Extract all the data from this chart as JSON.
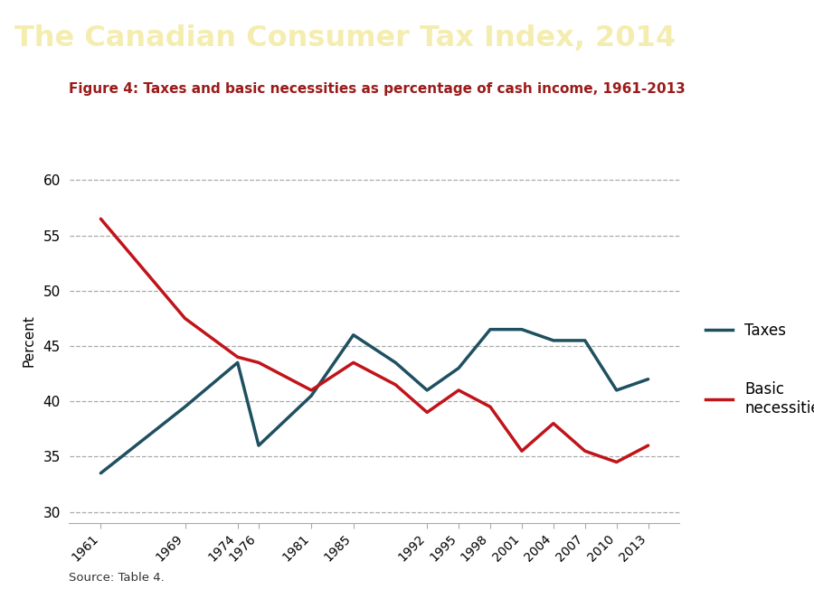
{
  "title": "The Canadian Consumer Tax Index, 2014",
  "subtitle": "Figure 4: Taxes and basic necessities as percentage of cash income, 1961-2013",
  "source": "Source: Table 4.",
  "title_bg_color": "#9B1B1B",
  "title_text_color": "#F5EDB0",
  "subtitle_color": "#9B1B1B",
  "bg_color": "#FFFFFF",
  "taxes_years": [
    1961,
    1969,
    1974,
    1976,
    1981,
    1985,
    1989,
    1992,
    1995,
    1998,
    2001,
    2004,
    2007,
    2010,
    2013
  ],
  "taxes_values": [
    33.5,
    39.5,
    43.5,
    36.0,
    40.5,
    46.0,
    43.5,
    41.0,
    43.0,
    46.5,
    46.5,
    45.5,
    45.5,
    41.0,
    42.0
  ],
  "basics_years": [
    1961,
    1969,
    1974,
    1976,
    1981,
    1985,
    1989,
    1992,
    1995,
    1998,
    2001,
    2004,
    2007,
    2010,
    2013
  ],
  "basics_values": [
    56.5,
    47.5,
    44.0,
    43.5,
    41.0,
    43.5,
    41.5,
    39.0,
    41.0,
    39.5,
    35.5,
    38.0,
    35.5,
    34.5,
    36.0
  ],
  "taxes_color": "#1F5060",
  "basics_color": "#C0141A",
  "xtick_labels": [
    "1961",
    "1969",
    "1974",
    "1976",
    "1981",
    "1985",
    "1992",
    "1995",
    "1998",
    "2001",
    "2004",
    "2007",
    "2010",
    "2013"
  ],
  "xtick_positions": [
    1961,
    1969,
    1974,
    1976,
    1981,
    1985,
    1992,
    1995,
    1998,
    2001,
    2004,
    2007,
    2010,
    2013
  ],
  "xlim": [
    1958,
    2016
  ],
  "ylim": [
    29,
    62
  ],
  "ytick_positions": [
    30,
    35,
    40,
    45,
    50,
    55,
    60
  ],
  "ytick_labels": [
    "30",
    "35",
    "40",
    "45",
    "50",
    "55",
    "60"
  ],
  "line_width": 2.5,
  "legend_taxes_label": "Taxes",
  "legend_basics_label": "Basic\nnecessities",
  "ylabel": "Percent"
}
